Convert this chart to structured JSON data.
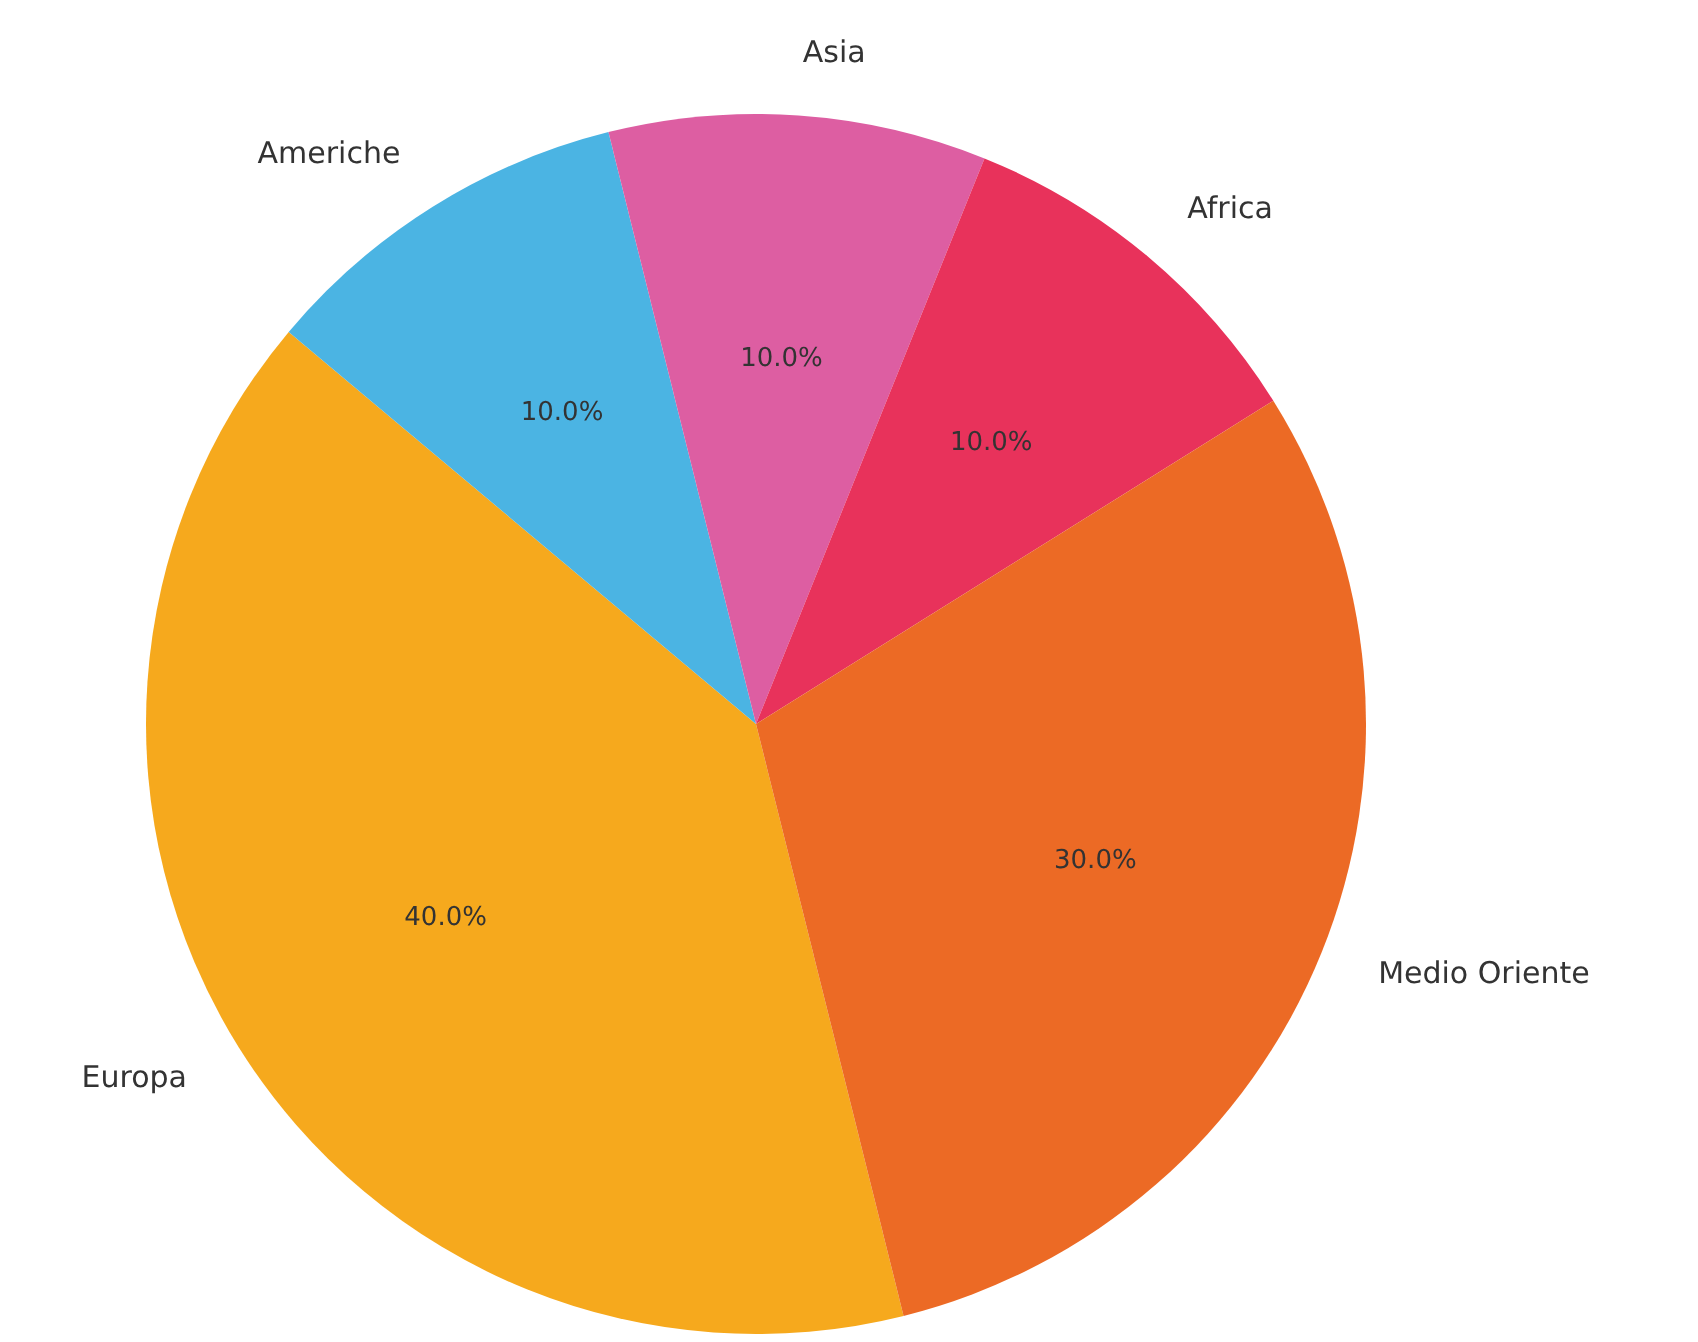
{
  "chart_data": {
    "type": "pie",
    "categories": [
      "Europa",
      "Americhe",
      "Asia",
      "Africa",
      "Medio Oriente"
    ],
    "values": [
      40,
      10,
      10,
      10,
      30
    ],
    "colors": [
      "#f6a91d",
      "#4bb4e3",
      "#dd5ea2",
      "#e8325b",
      "#ec6a25"
    ],
    "value_labels": [
      "40.0%",
      "10.0%",
      "10.0%",
      "10.0%",
      "30.0%"
    ],
    "legend": false
  }
}
